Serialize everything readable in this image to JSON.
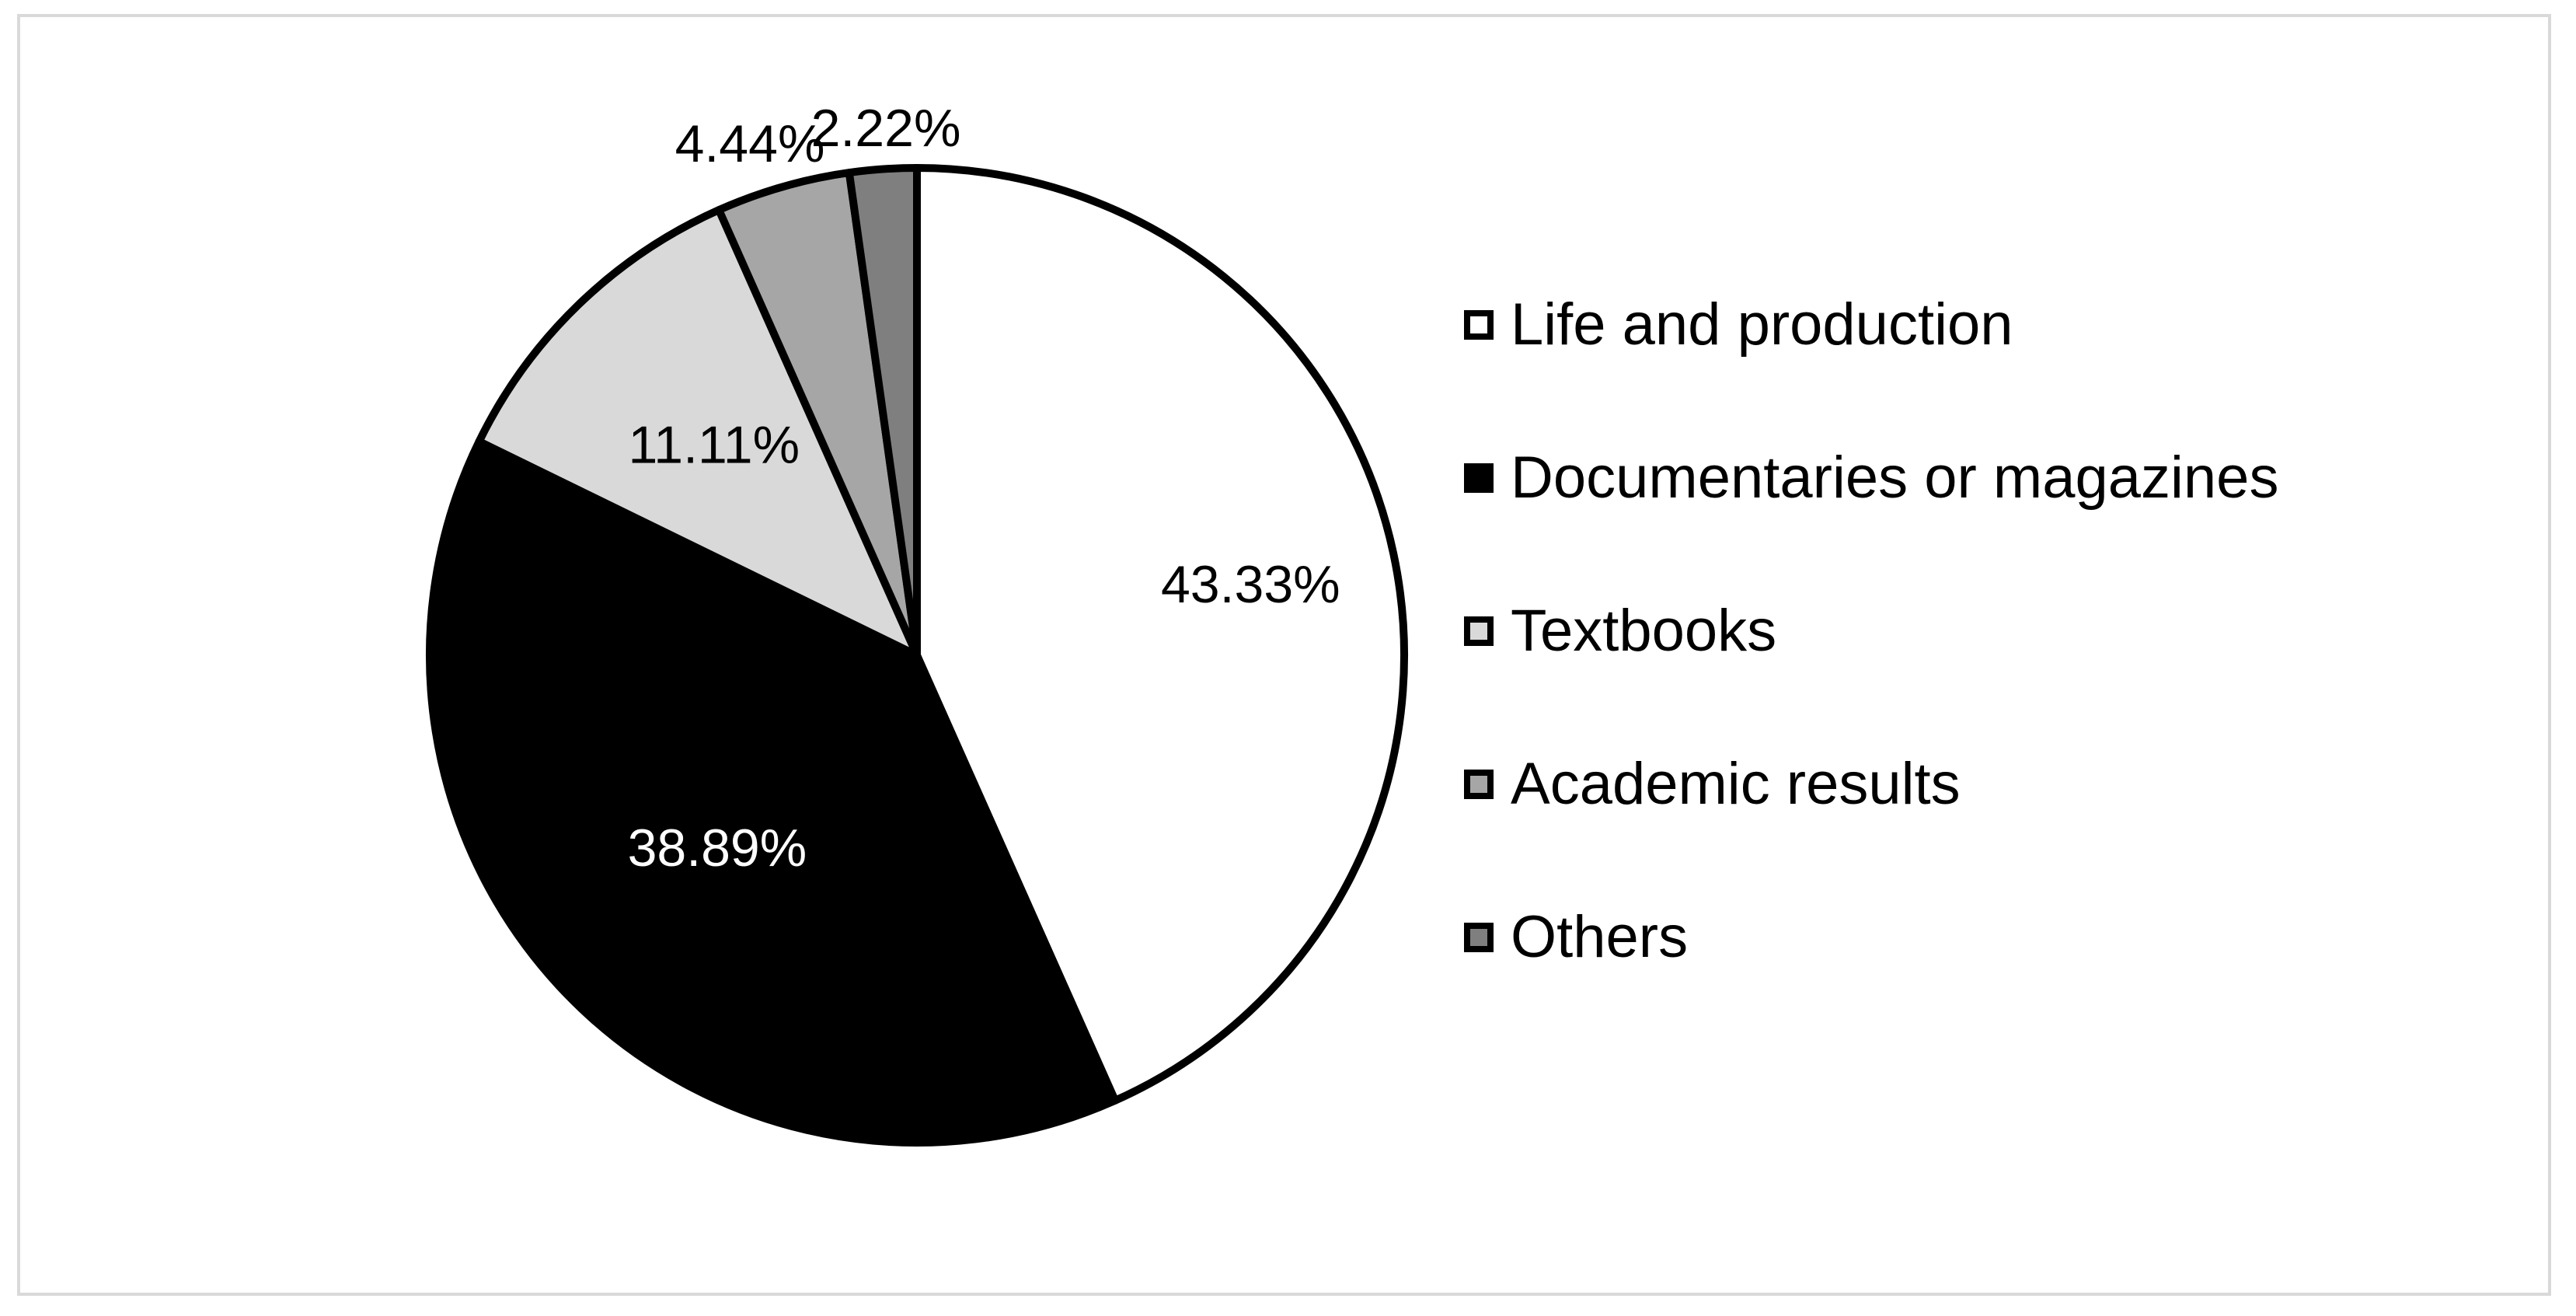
{
  "chart_data": {
    "type": "pie",
    "title": "",
    "start_angle_deg": 0,
    "direction": "clockwise",
    "legend_position": "right",
    "slices": [
      {
        "label": "Life and production",
        "value": 43.33,
        "display": "43.33%",
        "color": "#ffffff",
        "label_color": "#000000"
      },
      {
        "label": "Documentaries or magazines",
        "value": 38.89,
        "display": "38.89%",
        "color": "#000000",
        "label_color": "#ffffff"
      },
      {
        "label": "Textbooks",
        "value": 11.11,
        "display": "11.11%",
        "color": "#d9d9d9",
        "label_color": "#000000"
      },
      {
        "label": "Academic results",
        "value": 4.44,
        "display": "4.44%",
        "color": "#a6a6a6",
        "label_color": "#000000"
      },
      {
        "label": "Others",
        "value": 2.22,
        "display": "2.22%",
        "color": "#7f7f7f",
        "label_color": "#000000"
      }
    ]
  }
}
